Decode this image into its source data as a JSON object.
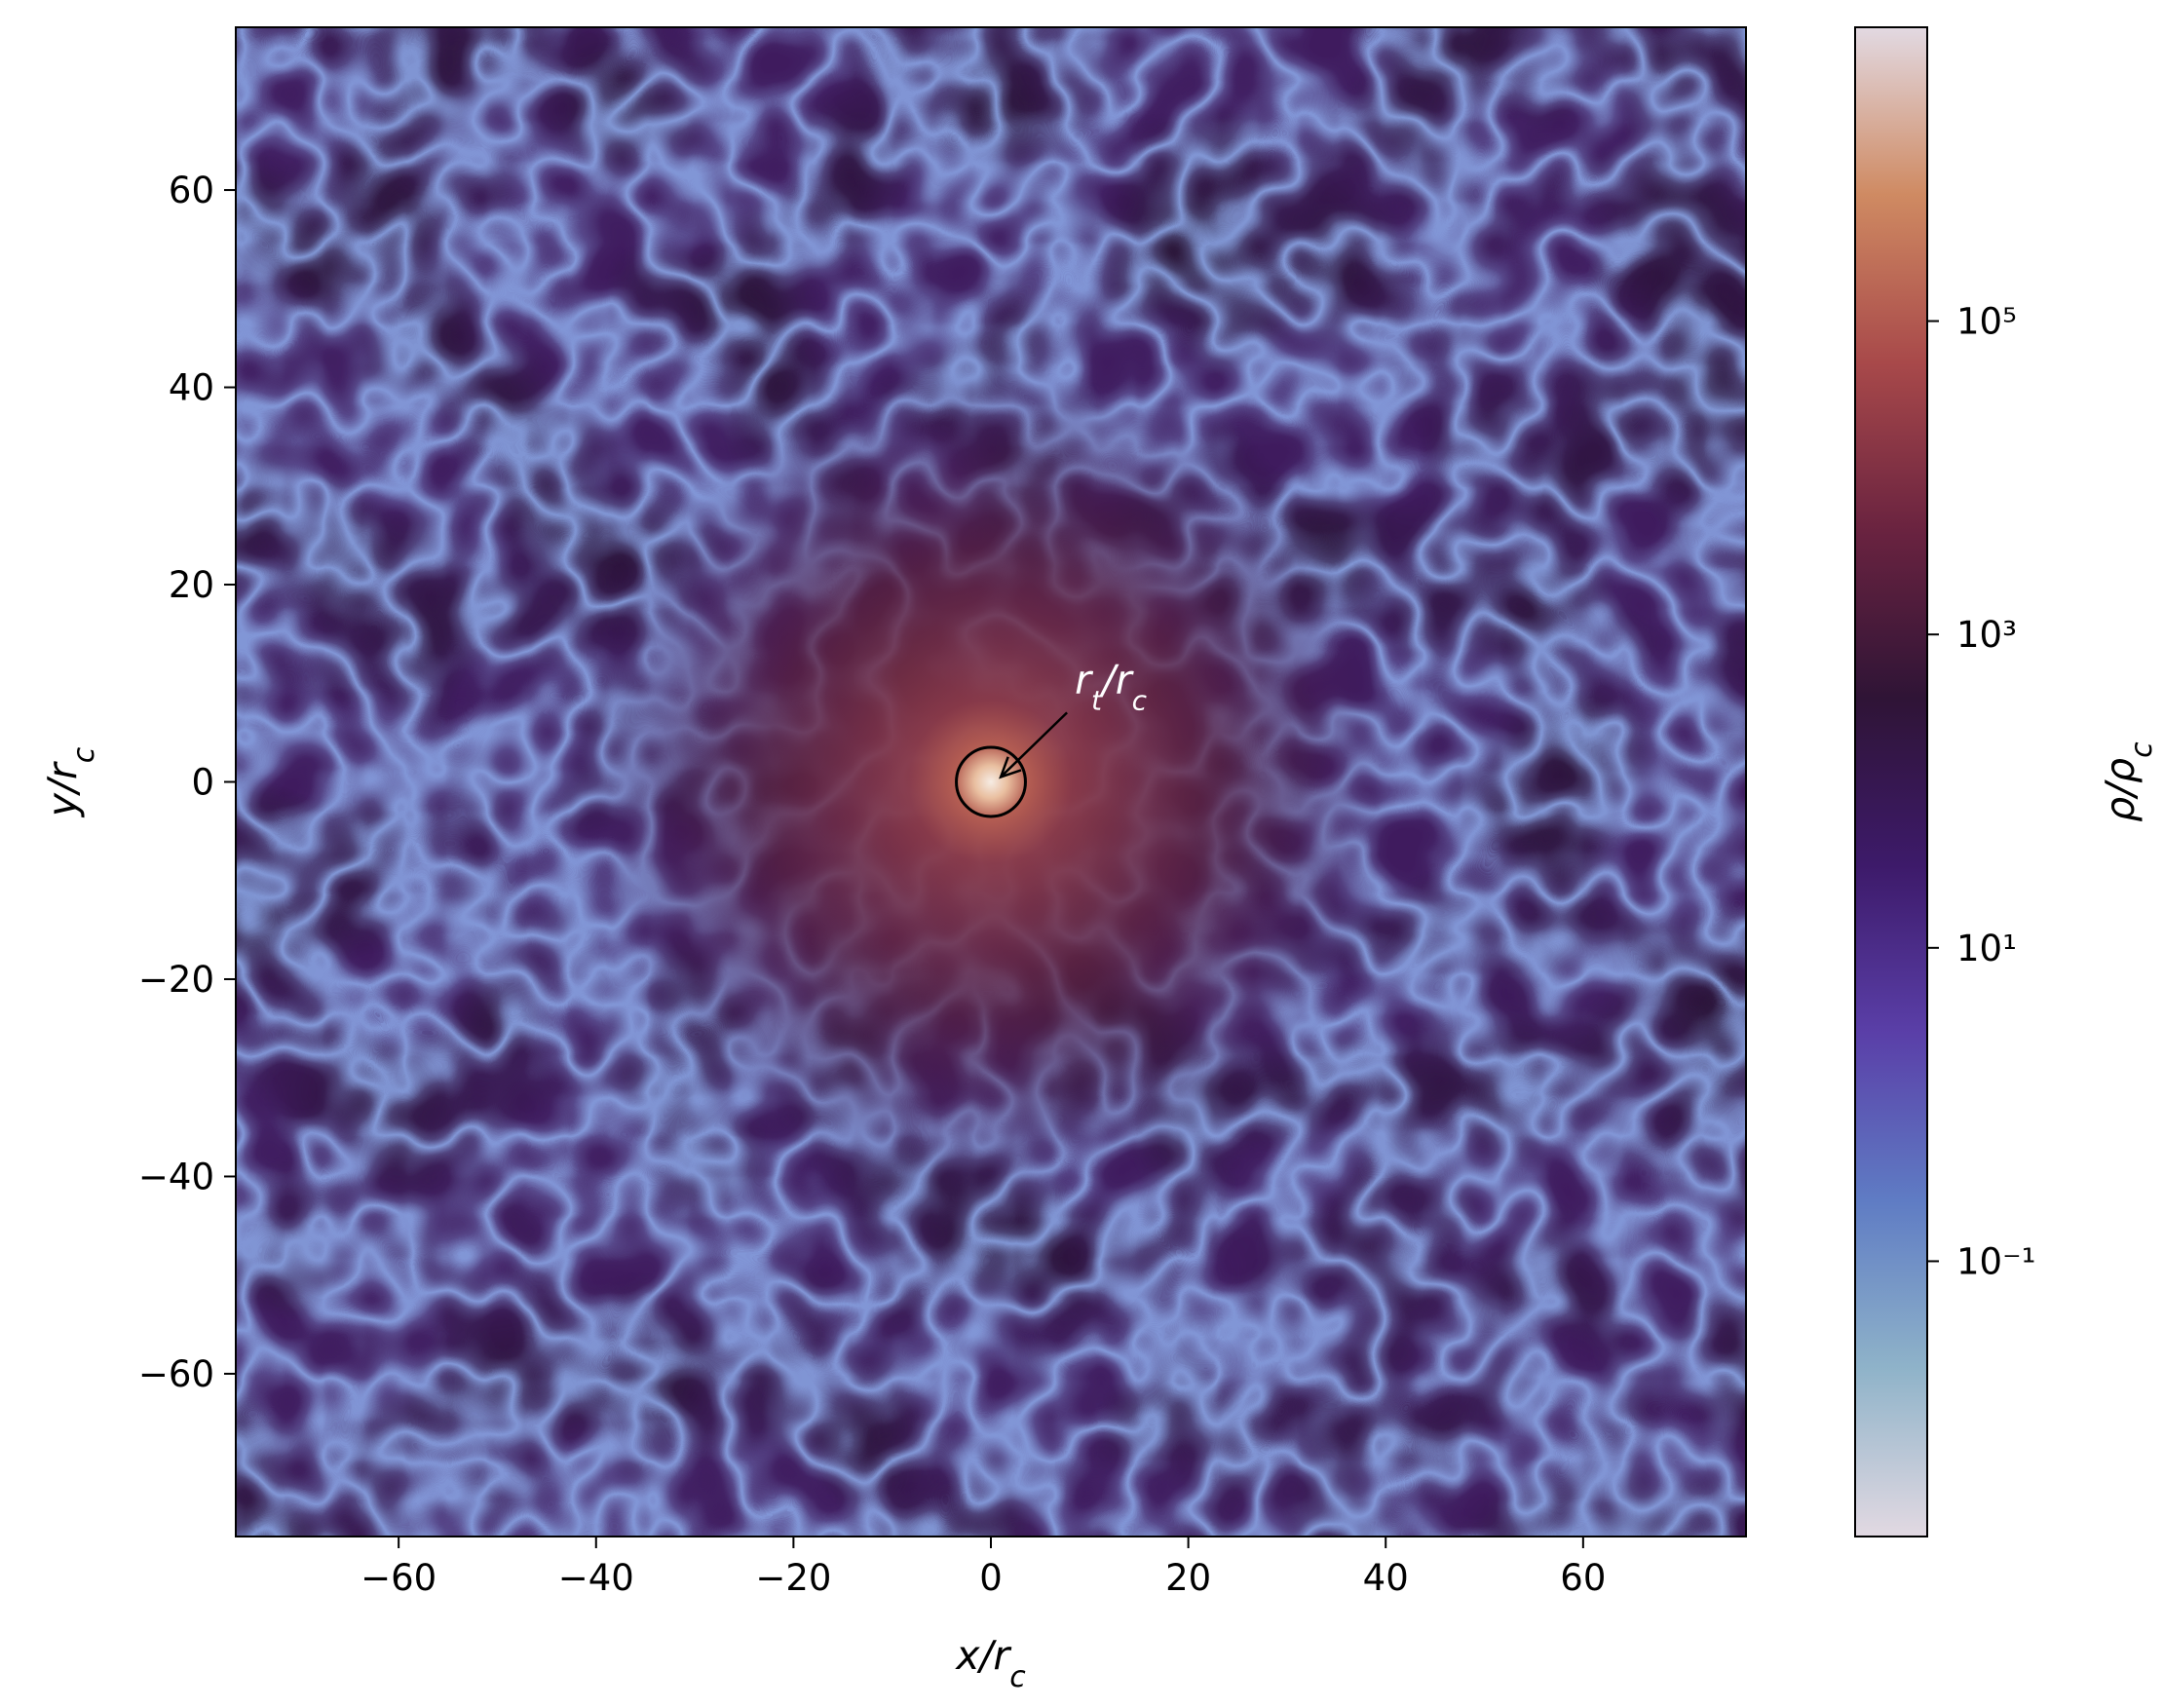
{
  "chart_data": {
    "type": "heatmap",
    "xlabel": [
      "x/r",
      "c"
    ],
    "ylabel": [
      "y/r",
      "c"
    ],
    "colorbar_label": [
      "ρ/ρ",
      "c"
    ],
    "xlim": [
      -76.5,
      76.5
    ],
    "ylim": [
      -76.5,
      76.5
    ],
    "xticks": [
      {
        "value": -60,
        "label": "−60"
      },
      {
        "value": -40,
        "label": "−40"
      },
      {
        "value": -20,
        "label": "−20"
      },
      0,
      20,
      40,
      60
    ],
    "yticks": [
      {
        "value": -60,
        "label": "−60"
      },
      {
        "value": -40,
        "label": "−40"
      },
      {
        "value": -20,
        "label": "−20"
      },
      0,
      20,
      40,
      60
    ],
    "clim": [
      0.00175,
      7500000
    ],
    "colorbar_scale": "log",
    "cticks": [
      {
        "value": 100000,
        "label": "10⁵"
      },
      {
        "value": 1000,
        "label": "10³"
      },
      {
        "value": 10,
        "label": "10¹"
      },
      {
        "value": 0.1,
        "label": "10⁻¹"
      }
    ],
    "colormap": [
      "#e2d9e2",
      "#8fb3c9",
      "#5f7cc4",
      "#5a3fa8",
      "#3d1a6a",
      "#2f1436",
      "#6a2340",
      "#a8494a",
      "#cf8a62",
      "#e2d9e2"
    ],
    "annotation": {
      "text": [
        "r",
        "t",
        "/r",
        "c"
      ],
      "xy": [
        1,
        0.5
      ],
      "xytext": [
        8.5,
        9
      ],
      "color": "#ffffff"
    },
    "circle": {
      "center": [
        0,
        0
      ],
      "radius": 3.5,
      "color": "#000000"
    }
  }
}
